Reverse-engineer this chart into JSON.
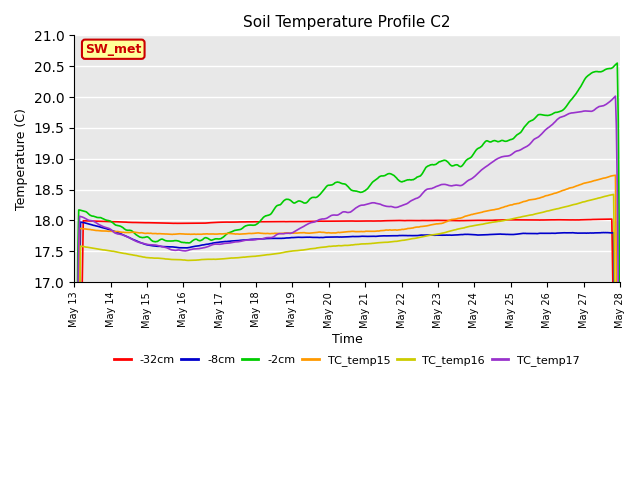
{
  "title": "Soil Temperature Profile C2",
  "xlabel": "Time",
  "ylabel": "Temperature (C)",
  "ylim": [
    17.0,
    21.0
  ],
  "yticks": [
    17.0,
    17.5,
    18.0,
    18.5,
    19.0,
    19.5,
    20.0,
    20.5,
    21.0
  ],
  "annotation_text": "SW_met",
  "annotation_bg": "#ffff99",
  "annotation_border": "#cc0000",
  "annotation_text_color": "#cc0000",
  "series": {
    "-32cm": {
      "color": "#ff0000",
      "linewidth": 1.2
    },
    "-8cm": {
      "color": "#0000cc",
      "linewidth": 1.2
    },
    "-2cm": {
      "color": "#00cc00",
      "linewidth": 1.2
    },
    "TC_temp15": {
      "color": "#ff9900",
      "linewidth": 1.2
    },
    "TC_temp16": {
      "color": "#cccc00",
      "linewidth": 1.2
    },
    "TC_temp17": {
      "color": "#9933cc",
      "linewidth": 1.2
    }
  },
  "background_color": "#e8e8e8",
  "fig_background": "#ffffff",
  "n_points": 600,
  "x_start": 13,
  "x_end": 28,
  "xtick_days": [
    13,
    14,
    15,
    16,
    17,
    18,
    19,
    20,
    21,
    22,
    23,
    24,
    25,
    26,
    27,
    28
  ]
}
